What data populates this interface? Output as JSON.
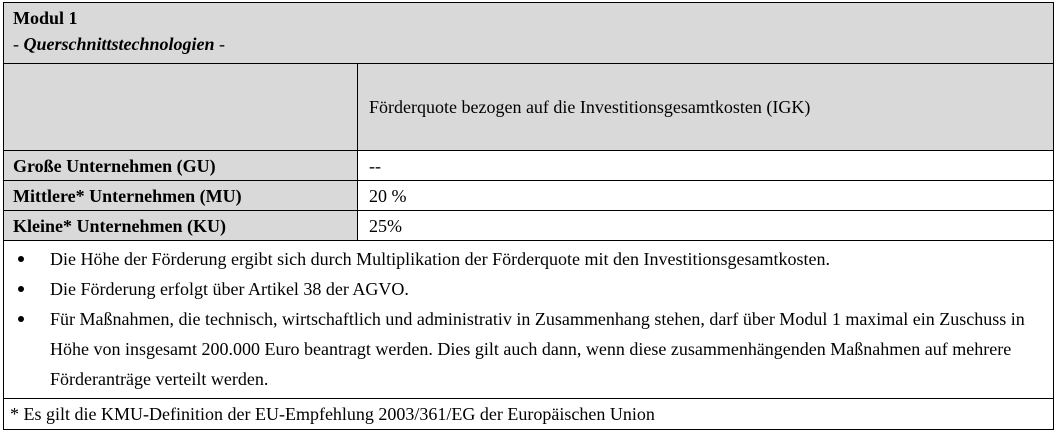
{
  "module": {
    "title": "Modul 1",
    "subtitle_prefix": "- ",
    "subtitle": "Querschnittstechnologien",
    "subtitle_suffix": " -"
  },
  "table": {
    "column_header": "Förderquote bezogen auf die Investitionsgesamtkosten (IGK)",
    "rows": [
      {
        "label": "Große Unternehmen (GU)",
        "value": "--"
      },
      {
        "label": "Mittlere* Unternehmen (MU)",
        "value": "20 %"
      },
      {
        "label": "Kleine* Unternehmen (KU)",
        "value": "25%"
      }
    ]
  },
  "notes": [
    "Die Höhe der Förderung ergibt sich durch Multiplikation der Förderquote mit den Investitionsgesamtkosten.",
    "Die Förderung erfolgt über Artikel 38 der AGVO.",
    "Für Maßnahmen, die technisch, wirtschaftlich und administrativ in Zusammenhang stehen, darf über Modul 1 maximal ein Zuschuss in Höhe von insgesamt 200.000 Euro beantragt werden. Dies gilt auch dann, wenn diese zusammenhängenden Maßnahmen auf mehrere Förderanträge verteilt werden."
  ],
  "footnote": "* Es gilt die KMU-Definition der EU-Empfehlung 2003/361/EG der Europäischen Union",
  "colors": {
    "header_bg": "#d9d9d9",
    "border": "#000000"
  }
}
